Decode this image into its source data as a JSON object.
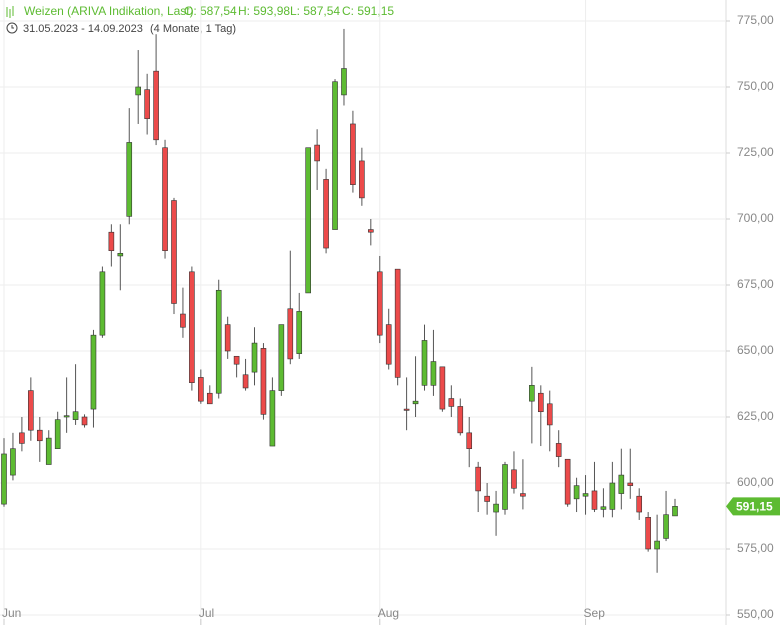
{
  "chart_data": {
    "type": "candlestick",
    "header": {
      "name": "Weizen (ARIVA Indikation, Last)",
      "ohlc": [
        "O: 587,54",
        "H: 593,98",
        "L: 587,54",
        "C: 591,15"
      ],
      "range": "31.05.2023 - 14.09.2023",
      "duration": "(4 Monate, 1 Tag)"
    },
    "categories": [
      "Jun",
      null,
      null,
      null,
      null,
      null,
      null,
      null,
      null,
      null,
      null,
      null,
      null,
      null,
      null,
      null,
      null,
      null,
      null,
      null,
      null,
      null,
      "Jul",
      null,
      null,
      null,
      null,
      null,
      null,
      null,
      null,
      null,
      null,
      null,
      null,
      null,
      null,
      null,
      null,
      null,
      null,
      null,
      "Aug",
      null,
      null,
      null,
      null,
      null,
      null,
      null,
      null,
      null,
      null,
      null,
      null,
      null,
      null,
      null,
      null,
      null,
      null,
      null,
      null,
      null,
      null,
      "Sep",
      null,
      null,
      null,
      null,
      null,
      null,
      null,
      null,
      null,
      null
    ],
    "open": [
      592,
      603,
      619,
      635,
      620,
      607,
      613,
      625,
      624,
      625,
      628,
      656,
      695,
      686,
      701,
      747,
      749,
      756,
      727,
      707,
      664,
      680,
      640,
      634,
      634,
      660,
      648,
      641,
      642,
      651,
      614,
      635,
      666,
      649,
      672,
      728,
      715,
      696,
      747,
      736,
      722,
      696,
      680,
      660,
      681,
      628,
      630,
      637,
      637,
      644,
      632,
      629,
      619,
      606,
      595,
      589,
      590,
      605,
      596,
      631,
      634,
      630,
      615,
      609,
      594,
      595,
      597,
      590,
      590,
      596,
      600,
      595,
      587,
      575,
      579,
      587.54
    ],
    "high": [
      617,
      619,
      625,
      640,
      625,
      620,
      627,
      640,
      645,
      626,
      658,
      682,
      698,
      698,
      742,
      764,
      755,
      770,
      730,
      708,
      674,
      682,
      643,
      637,
      677,
      663,
      648,
      647,
      659,
      653,
      640,
      660,
      688,
      672,
      727,
      734,
      719,
      753,
      772,
      741,
      727,
      700,
      686,
      666,
      681,
      640,
      648,
      660,
      658,
      644,
      637,
      632,
      625,
      608,
      600,
      597,
      608,
      612,
      609,
      644,
      637,
      635,
      620,
      609,
      602,
      603,
      608,
      598,
      608,
      613,
      613,
      598,
      589,
      588,
      597,
      593.98
    ],
    "low": [
      591,
      601,
      612,
      616,
      608,
      607,
      613,
      619,
      622,
      621,
      621,
      655,
      682,
      673,
      698,
      736,
      732,
      728,
      685,
      664,
      655,
      635,
      630,
      630,
      632,
      647,
      640,
      635,
      637,
      624,
      614,
      633,
      645,
      647,
      672,
      711,
      687,
      696,
      743,
      710,
      705,
      690,
      653,
      643,
      637,
      620,
      625,
      635,
      633,
      627,
      625,
      618,
      606,
      589,
      588,
      580,
      588,
      596,
      590,
      615,
      614,
      612,
      606,
      591,
      589,
      588,
      589,
      587,
      587,
      590,
      594,
      586,
      574,
      566,
      578,
      587.54
    ],
    "close": [
      611,
      613,
      615,
      620,
      616,
      617,
      624,
      625.5,
      627,
      622,
      656,
      680,
      688,
      687,
      729,
      750,
      738,
      730,
      688,
      668,
      659,
      638,
      631,
      630,
      673,
      650,
      645,
      636,
      653,
      626,
      635,
      660,
      647,
      665,
      727,
      722,
      689,
      752,
      757,
      713,
      708,
      695,
      656,
      645,
      640,
      627.5,
      631,
      654,
      646,
      628,
      629,
      619,
      613,
      597,
      593,
      592,
      607,
      598,
      595,
      637,
      627,
      622,
      610,
      592,
      599,
      596,
      590,
      591,
      600,
      603,
      599,
      589,
      575,
      578,
      588,
      591.15
    ],
    "up_color": "#5dbb32",
    "down_color": "#ec4a4a",
    "ylim": [
      550,
      775
    ],
    "yticks": [
      {
        "value": 550,
        "label": "550,00"
      },
      {
        "value": 575,
        "label": "575,00"
      },
      {
        "value": 600,
        "label": "600,00"
      },
      {
        "value": 625,
        "label": "625,00"
      },
      {
        "value": 650,
        "label": "650,00"
      },
      {
        "value": 675,
        "label": "675,00"
      },
      {
        "value": 700,
        "label": "700,00"
      },
      {
        "value": 725,
        "label": "725,00"
      },
      {
        "value": 750,
        "label": "750,00"
      },
      {
        "value": 775,
        "label": "775,00"
      }
    ],
    "last": {
      "value": 591.15,
      "label": "591,15"
    },
    "grid": true
  }
}
